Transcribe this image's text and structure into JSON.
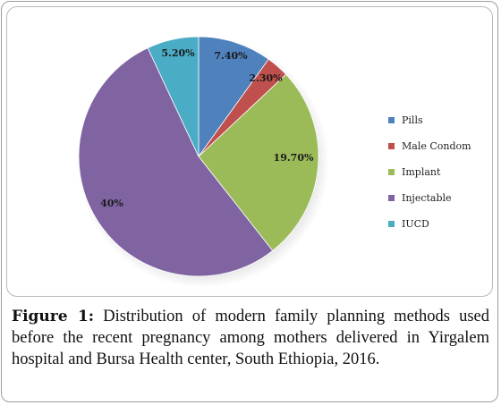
{
  "chart_data": {
    "type": "pie",
    "series": [
      {
        "name": "Pills",
        "value": 7.4,
        "label": "7.40%",
        "color": "#4f81bd"
      },
      {
        "name": "Male Condom",
        "value": 2.3,
        "label": "2.30%",
        "color": "#c0504d"
      },
      {
        "name": "Implant",
        "value": 19.7,
        "label": "19.70%",
        "color": "#9bbb59"
      },
      {
        "name": "Injectable",
        "value": 40,
        "label": "40%",
        "color": "#8064a2"
      },
      {
        "name": "IUCD",
        "value": 5.2,
        "label": "5.20%",
        "color": "#4bacc6"
      }
    ],
    "legend_position": "right"
  },
  "caption": {
    "label": "Figure 1:",
    "text": "Distribution of modern family planning methods used before the recent pregnancy among mothers delivered in Yirgalem hospital and Bursa Health center, South Ethiopia, 2016."
  }
}
